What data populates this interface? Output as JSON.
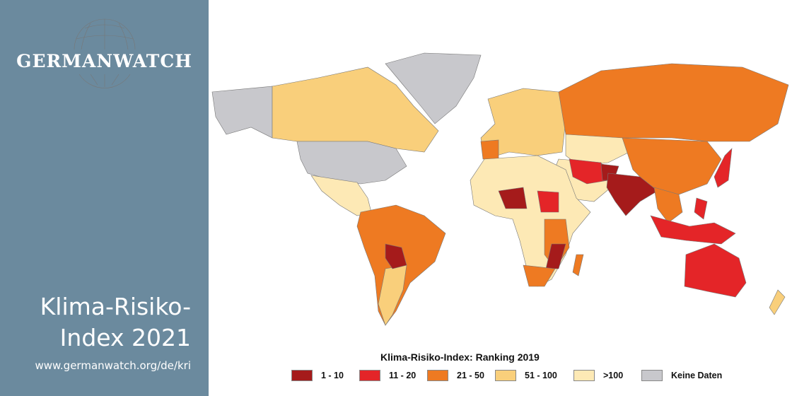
{
  "sidebar": {
    "logo_text": "GERMANWATCH",
    "title_line1": "Klima-Risiko-",
    "title_line2": "Index 2021",
    "url": "www.germanwatch.org/de/kri"
  },
  "legend": {
    "title": "Klima-Risiko-Index: Ranking 2019",
    "items": [
      {
        "label": "1 - 10",
        "color": "#a51b1b"
      },
      {
        "label": "11 - 20",
        "color": "#e42528"
      },
      {
        "label": "21 - 50",
        "color": "#ee7a22"
      },
      {
        "label": "51 - 100",
        "color": "#f9cf7b"
      },
      {
        "label": ">100",
        "color": "#fde9b5"
      },
      {
        "label": "Keine Daten",
        "color": "#c8c8cc"
      }
    ]
  }
}
